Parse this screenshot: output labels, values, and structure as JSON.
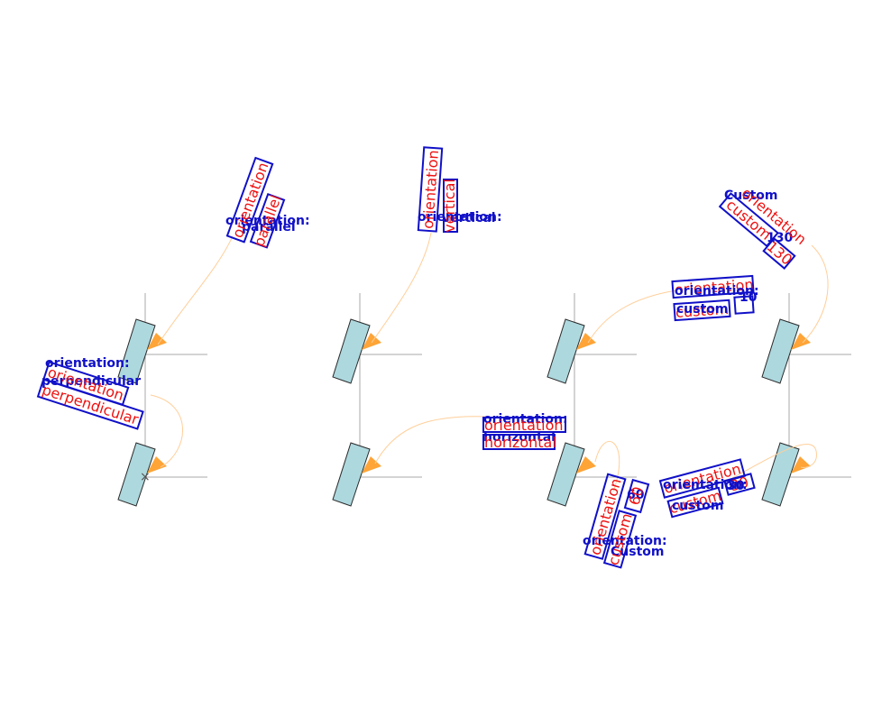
{
  "colors": {
    "blue_label": "#1010c8",
    "red_label": "#ee1111",
    "rect_fill": "#add8de",
    "arrow": "#ffa436",
    "curve": "#ffcf9a",
    "axis": "#a8a8a8"
  },
  "labels": {
    "orientation_prefix": "orientation:",
    "orientation_word": "orientation",
    "perpendicular": "perpendicular",
    "parallel": "parallel",
    "vertical": "vertical",
    "horizontal": "horizontal",
    "custom_lower": "custom",
    "custom_cap": "Custom",
    "custom_word": "Custom",
    "n130": "130",
    "n10": "10",
    "n60": "60",
    "n30": "30"
  },
  "marker": "×"
}
